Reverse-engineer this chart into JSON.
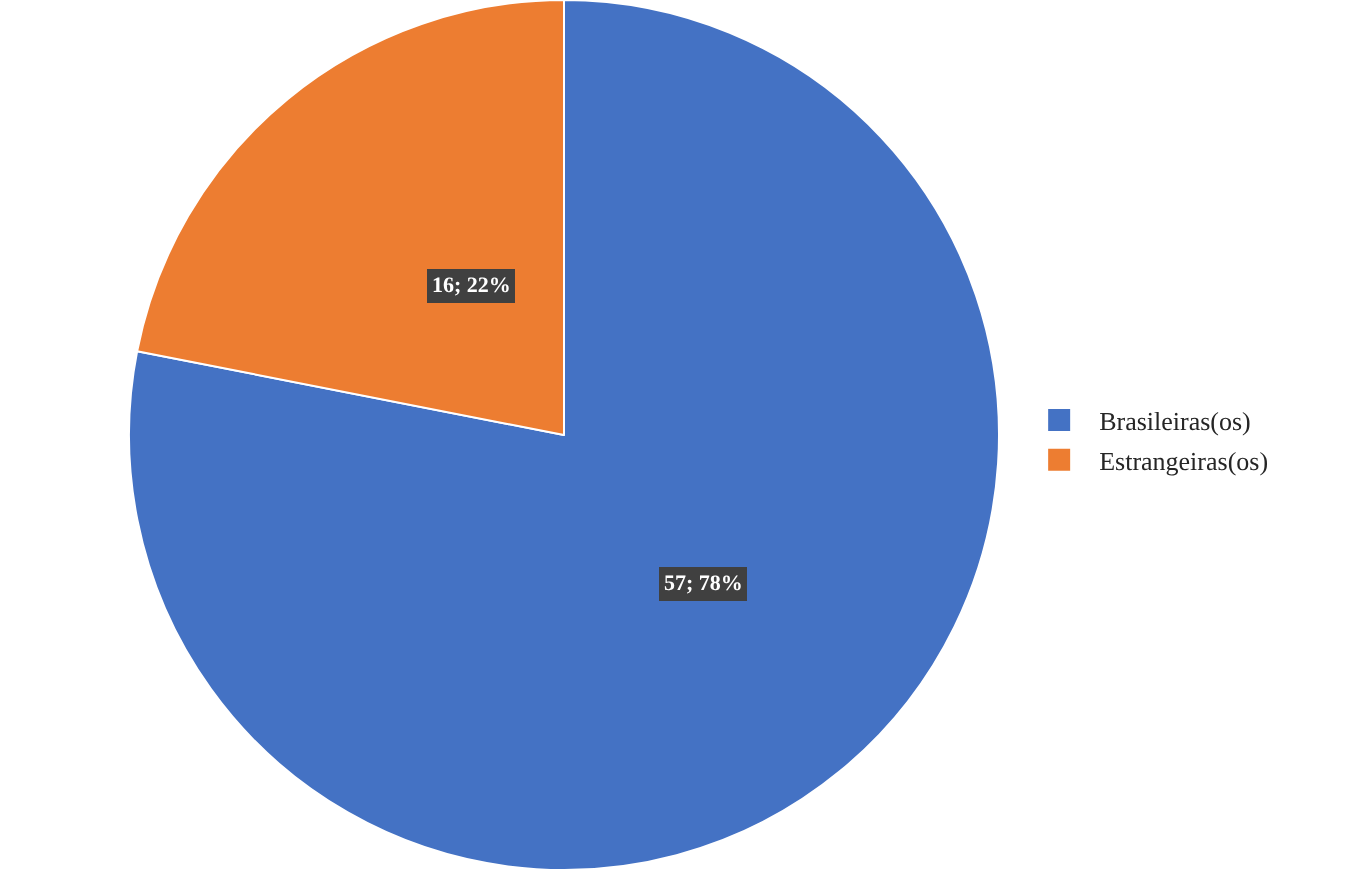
{
  "chart_data": {
    "type": "pie",
    "categories": [
      "Brasileiras(os)",
      "Estrangeiras(os)"
    ],
    "values": [
      57,
      16
    ],
    "colors": [
      "#4472c4",
      "#ed7d31"
    ],
    "value_labels": [
      "57; 78%",
      "16; 22%"
    ],
    "legend": "right"
  }
}
